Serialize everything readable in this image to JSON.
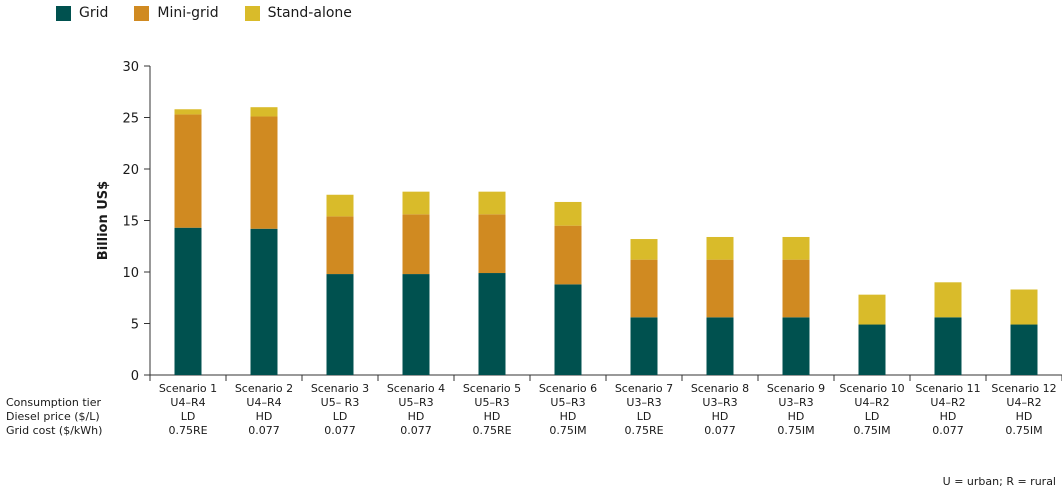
{
  "chart_data": {
    "type": "bar",
    "stacked": true,
    "categories": [
      "Scenario 1",
      "Scenario 2",
      "Scenario 3",
      "Scenario 4",
      "Scenario 5",
      "Scenario 6",
      "Scenario 7",
      "Scenario 8",
      "Scenario 9",
      "Scenario 10",
      "Scenario 11",
      "Scenario 12"
    ],
    "series": [
      {
        "name": "Grid",
        "color": "#00514f",
        "values": [
          14.3,
          14.2,
          9.8,
          9.8,
          9.9,
          8.8,
          5.6,
          5.6,
          5.6,
          4.9,
          5.6,
          4.9
        ]
      },
      {
        "name": "Mini-grid",
        "color": "#d08a21",
        "values": [
          11.0,
          10.9,
          5.6,
          5.8,
          5.7,
          5.7,
          5.6,
          5.6,
          5.6,
          0,
          0,
          0
        ]
      },
      {
        "name": "Stand-alone",
        "color": "#d9bb2a",
        "values": [
          0.5,
          0.9,
          2.1,
          2.2,
          2.2,
          2.3,
          2.0,
          2.2,
          2.2,
          2.9,
          3.4,
          3.4
        ]
      }
    ],
    "ylabel": "Billion US$",
    "xlabel": "",
    "ylim": [
      0,
      30
    ],
    "yticks": [
      0,
      5,
      10,
      15,
      20,
      25,
      30
    ],
    "grid": false,
    "legend": "top-left",
    "row_labels": [
      "Consumption tier",
      "Diesel price ($/L)",
      "Grid cost ($/kWh)"
    ],
    "consumption_tier": [
      "U4–R4",
      "U4–R4",
      "U5– R3",
      "U5–R3",
      "U5–R3",
      "U5–R3",
      "U3–R3",
      "U3–R3",
      "U3–R3",
      "U4–R2",
      "U4–R2",
      "U4–R2"
    ],
    "diesel_price": [
      "LD",
      "HD",
      "LD",
      "HD",
      "HD",
      "HD",
      "LD",
      "HD",
      "HD",
      "LD",
      "HD",
      "HD"
    ],
    "grid_cost": [
      "0.75RE",
      "0.077",
      "0.077",
      "0.077",
      "0.75RE",
      "0.75IM",
      "0.75RE",
      "0.077",
      "0.75IM",
      "0.75IM",
      "0.077",
      "0.75IM"
    ],
    "footnote": "U = urban; R = rural"
  }
}
